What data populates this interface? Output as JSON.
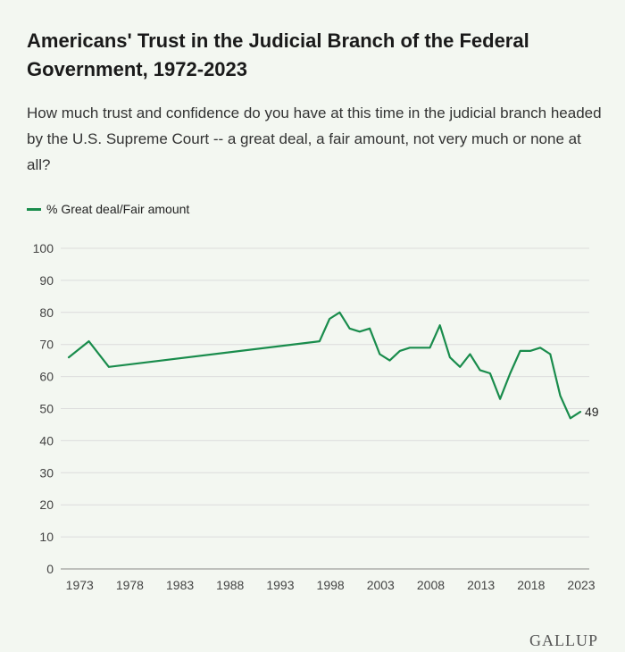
{
  "title": "Americans' Trust in the Judicial Branch of the Federal Government, 1972-2023",
  "subtitle": "How much trust and confidence do you have at this time in the judicial branch headed by the U.S. Supreme Court -- a great deal, a fair amount, not very much or none at all?",
  "legend": {
    "label": "% Great deal/Fair amount"
  },
  "logo": "GALLUP",
  "colors": {
    "line": "#198c4c",
    "grid": "#dcdcdc",
    "axis": "#888888",
    "background": "#f3f7f1"
  },
  "chart_data": {
    "type": "line",
    "title": "Americans' Trust in the Judicial Branch of the Federal Government, 1972-2023",
    "xlabel": "",
    "ylabel": "",
    "ylim": [
      0,
      100
    ],
    "xlim": [
      1972,
      2023
    ],
    "y_ticks": [
      0,
      10,
      20,
      30,
      40,
      50,
      60,
      70,
      80,
      90,
      100
    ],
    "x_ticks": [
      1973,
      1978,
      1983,
      1988,
      1993,
      1998,
      2003,
      2008,
      2013,
      2018,
      2023
    ],
    "grid": true,
    "legend_position": "top-left",
    "series": [
      {
        "name": "% Great deal/Fair amount",
        "x": [
          1972,
          1974,
          1976,
          1997,
          1998,
          1999,
          2000,
          2001,
          2002,
          2003,
          2004,
          2005,
          2006,
          2007,
          2008,
          2009,
          2010,
          2011,
          2012,
          2013,
          2014,
          2015,
          2016,
          2017,
          2018,
          2019,
          2020,
          2021,
          2022,
          2023
        ],
        "values": [
          66,
          71,
          63,
          71,
          78,
          80,
          75,
          74,
          75,
          67,
          65,
          68,
          69,
          69,
          69,
          76,
          66,
          63,
          67,
          62,
          61,
          53,
          61,
          68,
          68,
          69,
          67,
          54,
          47,
          49
        ]
      }
    ],
    "end_label": "49"
  }
}
